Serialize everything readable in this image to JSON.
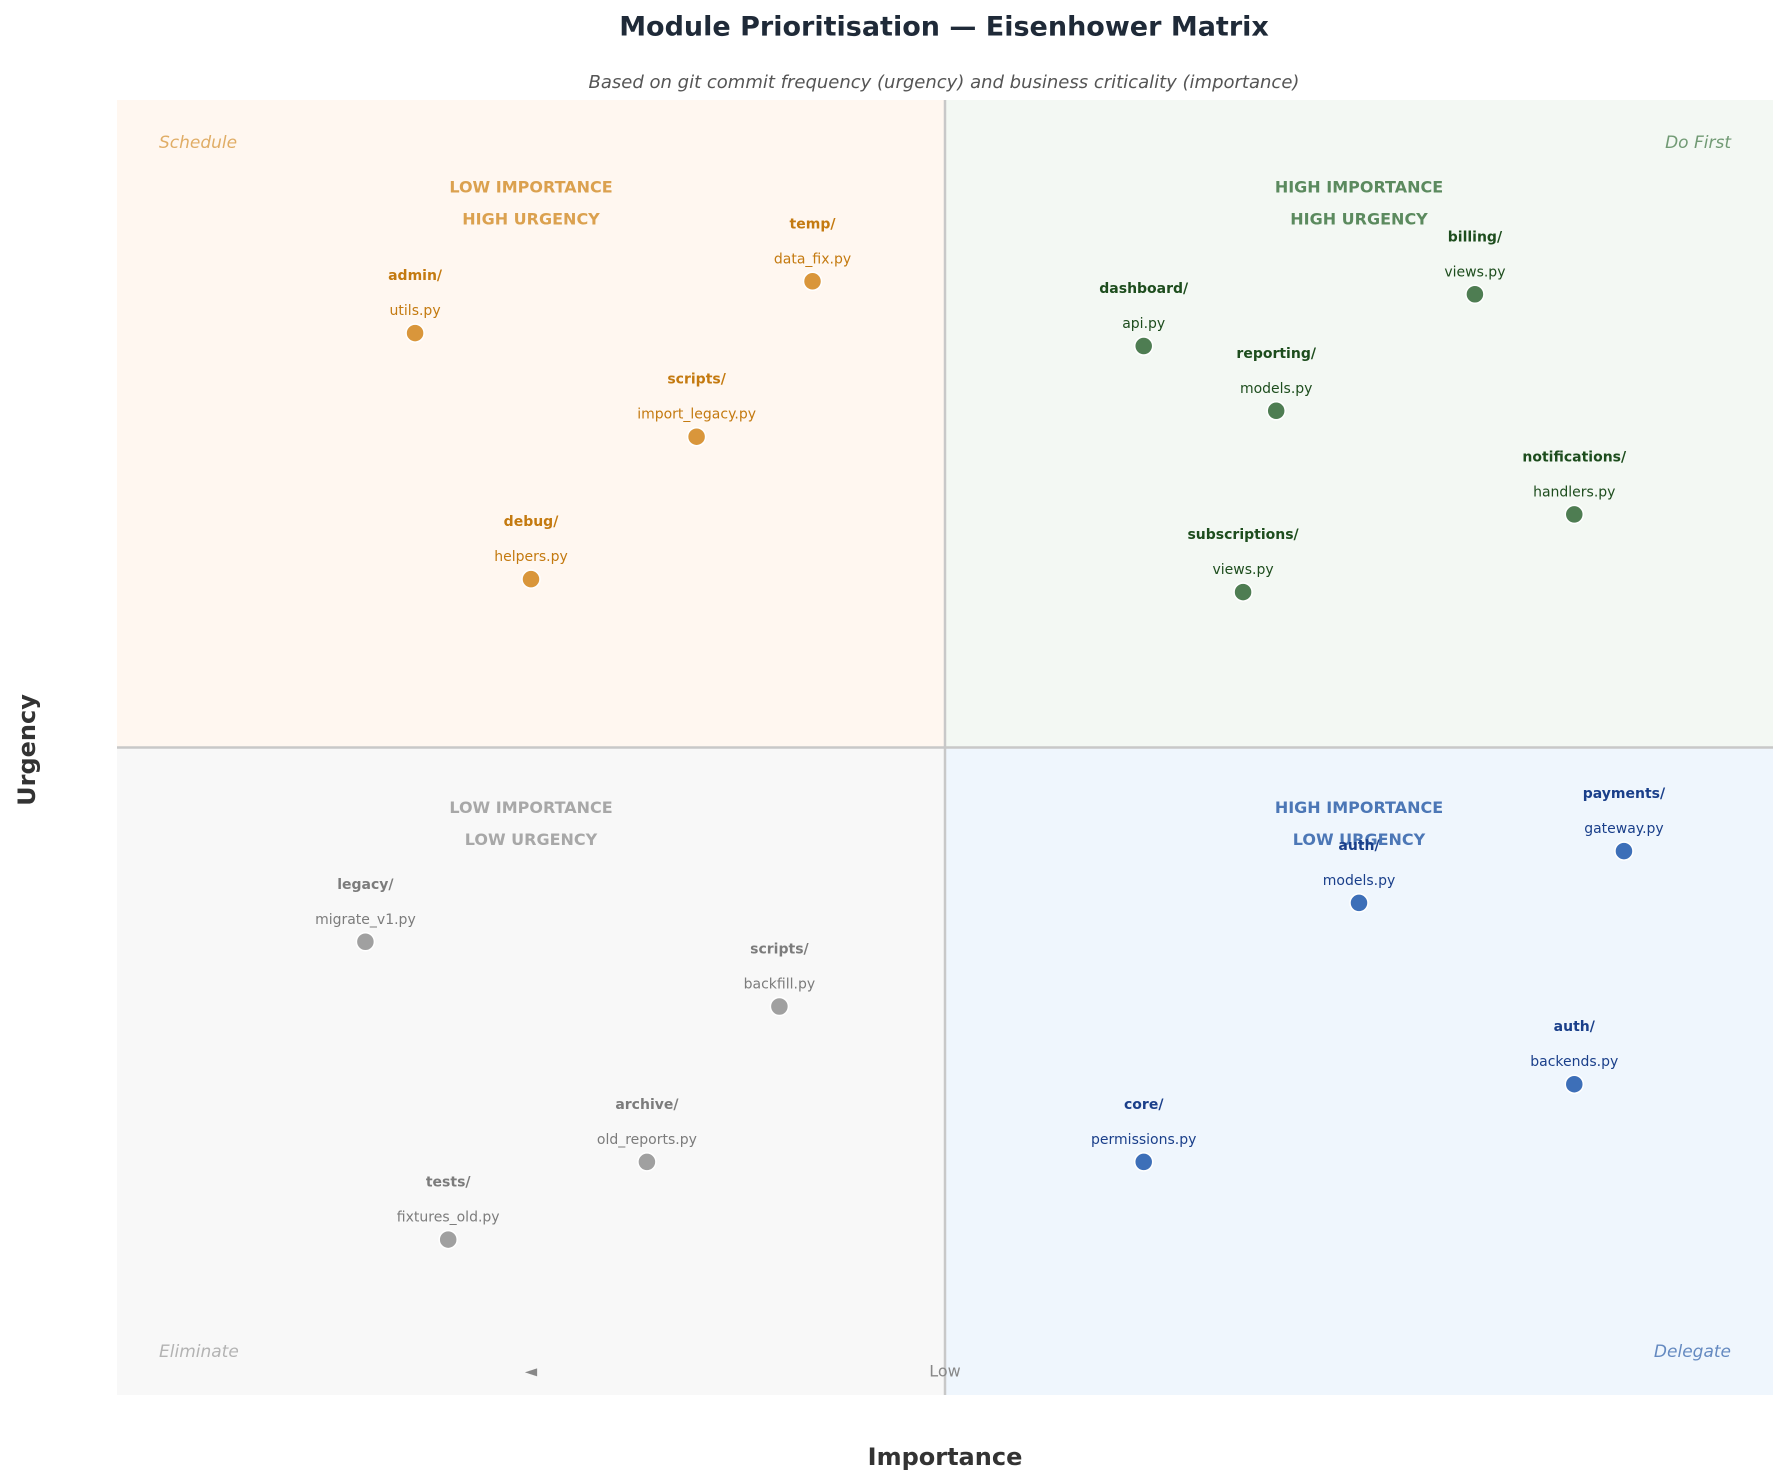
{
  "chart_data": {
    "type": "scatter",
    "title": "Module Prioritisation — Eisenhower Matrix",
    "subtitle": "Based on git commit frequency (urgency) and business criticality (importance)",
    "x_label": "Importance",
    "y_label": "Urgency",
    "xlim": [
      0,
      10
    ],
    "ylim": [
      0,
      10
    ],
    "axis_annotations": [
      {
        "text": "◄",
        "x": 2.5
      },
      {
        "text": "Low",
        "x": 5
      }
    ],
    "series": [
      {
        "name": "Schedule",
        "corner": "top-left",
        "heading": [
          "LOW IMPORTANCE",
          "HIGH URGENCY"
        ],
        "color": "#d9963b",
        "heading_color": "#dba14f",
        "text_color": "#c47a10",
        "background": "#fff7f0",
        "labels": [
          {
            "dir": "temp/",
            "file": "data_fix.py"
          },
          {
            "dir": "admin/",
            "file": "utils.py"
          },
          {
            "dir": "scripts/",
            "file": "import_legacy.py"
          },
          {
            "dir": "debug/",
            "file": "helpers.py"
          }
        ],
        "x": [
          4.2,
          1.8,
          3.5,
          2.5
        ],
        "values": [
          8.6,
          8.2,
          7.4,
          6.3
        ]
      },
      {
        "name": "Do First",
        "corner": "top-right",
        "heading": [
          "HIGH IMPORTANCE",
          "HIGH URGENCY"
        ],
        "color": "#4e7d52",
        "heading_color": "#5b8a5e",
        "text_color": "#1d4d1d",
        "background": "#f3f8f3",
        "labels": [
          {
            "dir": "billing/",
            "file": "views.py"
          },
          {
            "dir": "dashboard/",
            "file": "api.py"
          },
          {
            "dir": "reporting/",
            "file": "models.py"
          },
          {
            "dir": "notifications/",
            "file": "handlers.py"
          },
          {
            "dir": "subscriptions/",
            "file": "views.py"
          }
        ],
        "x": [
          8.2,
          6.2,
          7.0,
          8.8,
          6.8
        ],
        "values": [
          8.5,
          8.1,
          7.6,
          6.8,
          6.2
        ]
      },
      {
        "name": "Delegate",
        "corner": "bottom-right",
        "heading": [
          "HIGH IMPORTANCE",
          "LOW URGENCY"
        ],
        "color": "#3d6fb8",
        "heading_color": "#4c77b6",
        "text_color": "#1a3f8a",
        "background": "#eff6fd",
        "labels": [
          {
            "dir": "payments/",
            "file": "gateway.py"
          },
          {
            "dir": "auth/",
            "file": "models.py"
          },
          {
            "dir": "auth/",
            "file": "backends.py"
          },
          {
            "dir": "core/",
            "file": "permissions.py"
          }
        ],
        "x": [
          9.1,
          7.5,
          8.8,
          6.2
        ],
        "values": [
          4.2,
          3.8,
          2.4,
          1.8
        ]
      },
      {
        "name": "Eliminate",
        "corner": "bottom-left",
        "heading": [
          "LOW IMPORTANCE",
          "LOW URGENCY"
        ],
        "color": "#a0a0a0",
        "heading_color": "#a8a8a8",
        "text_color": "#7c7c7c",
        "background": "#f8f8f8",
        "labels": [
          {
            "dir": "legacy/",
            "file": "migrate_v1.py"
          },
          {
            "dir": "scripts/",
            "file": "backfill.py"
          },
          {
            "dir": "archive/",
            "file": "old_reports.py"
          },
          {
            "dir": "tests/",
            "file": "fixtures_old.py"
          }
        ],
        "x": [
          1.5,
          4.0,
          3.2,
          2.0
        ],
        "values": [
          3.5,
          3.0,
          1.8,
          1.2
        ]
      }
    ]
  }
}
